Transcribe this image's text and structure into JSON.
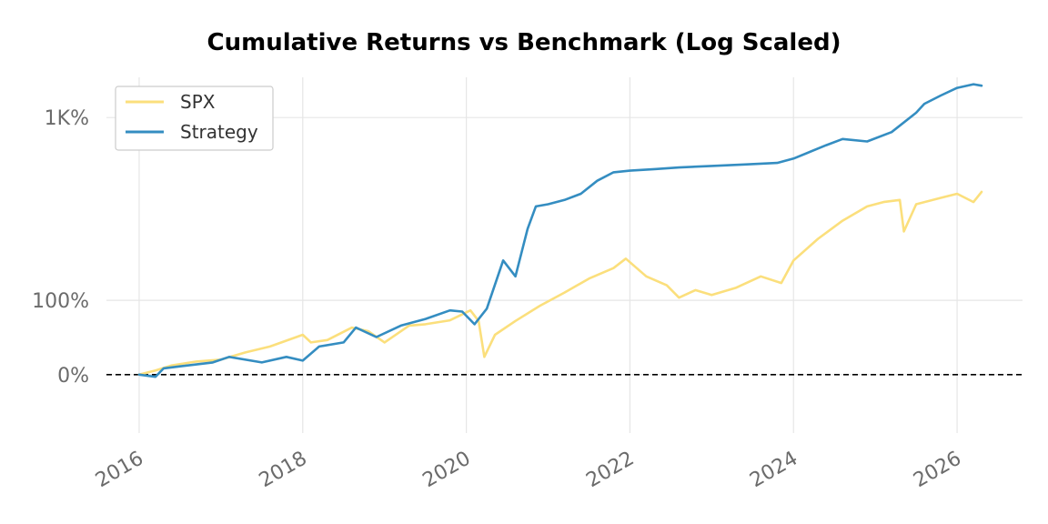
{
  "chart_data": {
    "type": "line",
    "title": "Cumulative Returns vs Benchmark (Log Scaled)",
    "xlabel": "",
    "ylabel": "",
    "y_scale": "log",
    "x_ticks": [
      "2016",
      "2018",
      "2020",
      "2022",
      "2024",
      "2026"
    ],
    "y_ticks": [
      {
        "value": 0,
        "label": "0%"
      },
      {
        "value": 100,
        "label": "100%"
      },
      {
        "value": 1000,
        "label": "1K%"
      }
    ],
    "xlim": [
      2015.6,
      2026.8
    ],
    "ylim_percent": [
      -42,
      1500
    ],
    "grid": true,
    "legend_position": "top-left",
    "baseline_percent": 0,
    "colors": {
      "SPX": "#fbdf7c",
      "Strategy": "#348dc1",
      "baseline": "#000000"
    },
    "series": [
      {
        "name": "SPX",
        "x": [
          2016.0,
          2016.2,
          2016.4,
          2016.7,
          2017.0,
          2017.3,
          2017.6,
          2018.0,
          2018.1,
          2018.3,
          2018.6,
          2018.8,
          2019.0,
          2019.3,
          2019.5,
          2019.8,
          2020.05,
          2020.15,
          2020.22,
          2020.35,
          2020.6,
          2020.9,
          2021.2,
          2021.5,
          2021.8,
          2021.95,
          2022.2,
          2022.45,
          2022.6,
          2022.8,
          2023.0,
          2023.3,
          2023.6,
          2023.85,
          2024.0,
          2024.3,
          2024.6,
          2024.9,
          2025.1,
          2025.3,
          2025.35,
          2025.5,
          2025.8,
          2026.0,
          2026.2,
          2026.3
        ],
        "values": [
          0,
          4,
          9,
          13,
          15,
          23,
          30,
          45,
          35,
          38,
          55,
          50,
          35,
          58,
          60,
          66,
          82,
          65,
          18,
          45,
          65,
          90,
          115,
          145,
          170,
          195,
          150,
          130,
          105,
          120,
          110,
          125,
          150,
          135,
          190,
          255,
          320,
          380,
          400,
          410,
          280,
          390,
          420,
          440,
          400,
          450
        ]
      },
      {
        "name": "Strategy",
        "x": [
          2016.0,
          2016.2,
          2016.3,
          2016.5,
          2016.9,
          2017.1,
          2017.5,
          2017.8,
          2018.0,
          2018.2,
          2018.5,
          2018.65,
          2018.9,
          2019.2,
          2019.5,
          2019.8,
          2019.95,
          2020.1,
          2020.25,
          2020.45,
          2020.6,
          2020.75,
          2020.85,
          2021.0,
          2021.2,
          2021.4,
          2021.6,
          2021.8,
          2022.0,
          2022.3,
          2022.6,
          2023.0,
          2023.4,
          2023.8,
          2024.0,
          2024.4,
          2024.6,
          2024.9,
          2025.2,
          2025.5,
          2025.6,
          2025.8,
          2026.0,
          2026.2,
          2026.3
        ],
        "values": [
          0,
          -2,
          6,
          8,
          12,
          18,
          12,
          18,
          14,
          30,
          35,
          55,
          42,
          58,
          68,
          82,
          80,
          60,
          85,
          190,
          150,
          290,
          380,
          390,
          410,
          440,
          510,
          560,
          570,
          580,
          590,
          600,
          610,
          620,
          650,
          750,
          800,
          780,
          860,
          1050,
          1150,
          1250,
          1350,
          1400,
          1380
        ]
      }
    ]
  }
}
